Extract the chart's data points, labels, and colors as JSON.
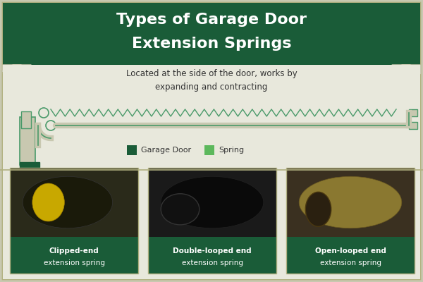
{
  "title_line1": "Types of Garage Door",
  "title_line2": "Extension Springs",
  "title_bg": "#1a5c38",
  "title_text_color": "#ffffff",
  "body_bg": "#e8e8dc",
  "subtitle_text": "Located at the side of the door, works by\nexpanding and contracting",
  "subtitle_color": "#333333",
  "dark_green": "#1a5c38",
  "light_green": "#5cb85c",
  "diagram_line_color": "#c8c8b0",
  "diagram_stroke": "#4a9a6a",
  "legend_garage": "#1a5c38",
  "legend_spring": "#5cb85c",
  "card_bg": "#1a5c38",
  "card_text_color": "#ffffff",
  "card_labels": [
    "Clipped-end\nextension spring",
    "Double-looped end\nextension spring",
    "Open-looped end\nextension spring"
  ],
  "card_bold_parts": [
    "Clipped-end",
    "Double-looped end",
    "Open-looped end"
  ],
  "outer_bg": "#c8c8b0",
  "border_color": "#b0b080"
}
